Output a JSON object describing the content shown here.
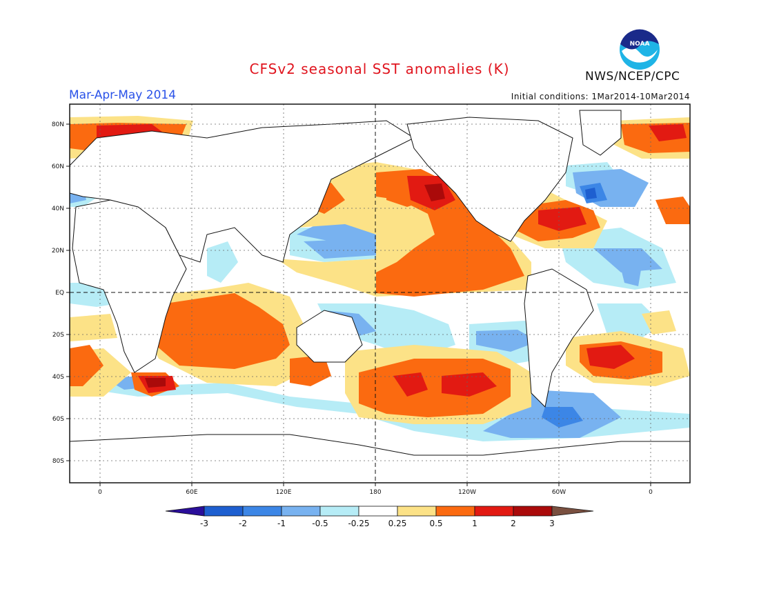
{
  "header": {
    "title": "CFSv2 seasonal SST anomalies (K)",
    "season": "Mar-Apr-May 2014",
    "initial_conditions": "Initial conditions: 1Mar2014-10Mar2014",
    "organization": "NWS/NCEP/CPC",
    "logo_text": "NOAA"
  },
  "map": {
    "lat_labels": [
      "80N",
      "60N",
      "40N",
      "20N",
      "EQ",
      "20S",
      "40S",
      "60S",
      "80S"
    ],
    "lon_labels": [
      "0",
      "60E",
      "120E",
      "180",
      "120W",
      "60W",
      "0"
    ],
    "projection": "cylindrical equidistant"
  },
  "legend": {
    "labels": [
      "-3",
      "-2",
      "-1",
      "-0.5",
      "-0.25",
      "0.25",
      "0.5",
      "1",
      "2",
      "3"
    ],
    "colors": [
      "#2a0e9a",
      "#1e5fd0",
      "#3c86e6",
      "#78b2f0",
      "#b6ecf6",
      "#ffffff",
      "#fce287",
      "#fb6a10",
      "#e21a12",
      "#aa0a0a",
      "#7a5040"
    ]
  }
}
